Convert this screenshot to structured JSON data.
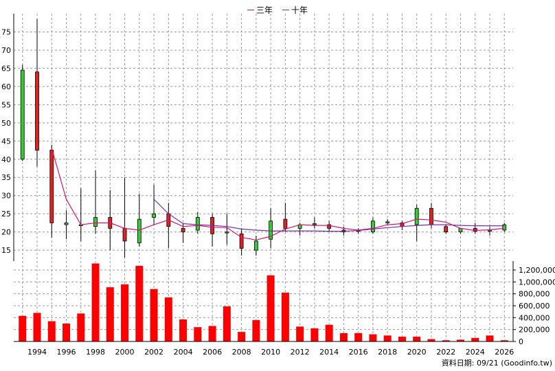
{
  "legend": {
    "three_year": "三年",
    "ten_year": "十年"
  },
  "source_text": "資料日期: 09/21  (Goodinfo.tw)",
  "colors": {
    "up": "#33cc33",
    "down": "#dd2222",
    "ma3": "#e0106e",
    "ma10": "#7030b0",
    "volume": "#ff0000",
    "grid": "#999999"
  },
  "chart_data": [
    {
      "type": "candlestick",
      "title": "",
      "x_tick_labels": [
        "1994",
        "1996",
        "1998",
        "2000",
        "2002",
        "2004",
        "2006",
        "2008",
        "2010",
        "2012",
        "2014",
        "2016",
        "2018",
        "2020",
        "2022",
        "2024",
        "2026"
      ],
      "y_tick_labels": [
        "15",
        "20",
        "25",
        "30",
        "35",
        "40",
        "45",
        "50",
        "55",
        "60",
        "65",
        "70",
        "75"
      ],
      "ylim": [
        12,
        80
      ],
      "grid": true,
      "candles": [
        {
          "year": 1993,
          "open": 40,
          "high": 66,
          "low": 39.5,
          "close": 64.5
        },
        {
          "year": 1994,
          "open": 64,
          "high": 78.5,
          "low": 38,
          "close": 42.5
        },
        {
          "year": 1995,
          "open": 42.5,
          "high": 44,
          "low": 18.5,
          "close": 22.5
        },
        {
          "year": 1996,
          "open": 22,
          "high": 26,
          "low": 18,
          "close": 22.5
        },
        {
          "year": 1997,
          "open": 22,
          "high": 32,
          "low": 17.5,
          "close": 22
        },
        {
          "year": 1998,
          "open": 21.5,
          "high": 37,
          "low": 19.5,
          "close": 24
        },
        {
          "year": 1999,
          "open": 24,
          "high": 31.5,
          "low": 15,
          "close": 21
        },
        {
          "year": 2000,
          "open": 21,
          "high": 35,
          "low": 13,
          "close": 17.5
        },
        {
          "year": 2001,
          "open": 17,
          "high": 30.5,
          "low": 16,
          "close": 23.5
        },
        {
          "year": 2002,
          "open": 24,
          "high": 33,
          "low": 22,
          "close": 25
        },
        {
          "year": 2003,
          "open": 25,
          "high": 28,
          "low": 15.5,
          "close": 21.5
        },
        {
          "year": 2004,
          "open": 21,
          "high": 22.5,
          "low": 17,
          "close": 20
        },
        {
          "year": 2005,
          "open": 20.5,
          "high": 25.5,
          "low": 19.5,
          "close": 24
        },
        {
          "year": 2006,
          "open": 24,
          "high": 25,
          "low": 16,
          "close": 19.5
        },
        {
          "year": 2007,
          "open": 20,
          "high": 25,
          "low": 16.5,
          "close": 20
        },
        {
          "year": 2008,
          "open": 19.5,
          "high": 21,
          "low": 13.5,
          "close": 15.5
        },
        {
          "year": 2009,
          "open": 15,
          "high": 19,
          "low": 13.5,
          "close": 17.5
        },
        {
          "year": 2010,
          "open": 18,
          "high": 26.5,
          "low": 15.5,
          "close": 23
        },
        {
          "year": 2011,
          "open": 23.5,
          "high": 28,
          "low": 20,
          "close": 21
        },
        {
          "year": 2012,
          "open": 21,
          "high": 22.5,
          "low": 19,
          "close": 22
        },
        {
          "year": 2013,
          "open": 22,
          "high": 24,
          "low": 21,
          "close": 22.3
        },
        {
          "year": 2014,
          "open": 22,
          "high": 23,
          "low": 20,
          "close": 21
        },
        {
          "year": 2015,
          "open": 20.5,
          "high": 21.5,
          "low": 19,
          "close": 20
        },
        {
          "year": 2016,
          "open": 20.5,
          "high": 21,
          "low": 19.5,
          "close": 20.2
        },
        {
          "year": 2017,
          "open": 20,
          "high": 24,
          "low": 19.5,
          "close": 23
        },
        {
          "year": 2018,
          "open": 22.5,
          "high": 23.5,
          "low": 22,
          "close": 22.8
        },
        {
          "year": 2019,
          "open": 22.5,
          "high": 23,
          "low": 20.5,
          "close": 21.5
        },
        {
          "year": 2020,
          "open": 22,
          "high": 27.5,
          "low": 17.5,
          "close": 26.5
        },
        {
          "year": 2021,
          "open": 26.5,
          "high": 28,
          "low": 21,
          "close": 22
        },
        {
          "year": 2022,
          "open": 21.5,
          "high": 22,
          "low": 19.5,
          "close": 20
        },
        {
          "year": 2023,
          "open": 20,
          "high": 21,
          "low": 19.5,
          "close": 21
        },
        {
          "year": 2024,
          "open": 21,
          "high": 22.5,
          "low": 19.5,
          "close": 20.2
        },
        {
          "year": 2025,
          "open": 20.5,
          "high": 21.5,
          "low": 19,
          "close": 20.5
        },
        {
          "year": 2026,
          "open": 20.5,
          "high": 22.5,
          "low": 20,
          "close": 22
        }
      ],
      "ma3": [
        {
          "year": 1995,
          "value": 43
        },
        {
          "year": 1996,
          "value": 29
        },
        {
          "year": 1997,
          "value": 22
        },
        {
          "year": 1998,
          "value": 22.5
        },
        {
          "year": 1999,
          "value": 22.5
        },
        {
          "year": 2000,
          "value": 21
        },
        {
          "year": 2001,
          "value": 20.5
        },
        {
          "year": 2002,
          "value": 22
        },
        {
          "year": 2003,
          "value": 23.3
        },
        {
          "year": 2004,
          "value": 21.5
        },
        {
          "year": 2005,
          "value": 21.8
        },
        {
          "year": 2006,
          "value": 21.3
        },
        {
          "year": 2007,
          "value": 21.2
        },
        {
          "year": 2008,
          "value": 18.5
        },
        {
          "year": 2009,
          "value": 17.8
        },
        {
          "year": 2010,
          "value": 18.8
        },
        {
          "year": 2011,
          "value": 20.8
        },
        {
          "year": 2012,
          "value": 22
        },
        {
          "year": 2013,
          "value": 21.8
        },
        {
          "year": 2014,
          "value": 21.8
        },
        {
          "year": 2015,
          "value": 21
        },
        {
          "year": 2016,
          "value": 20.5
        },
        {
          "year": 2017,
          "value": 21
        },
        {
          "year": 2018,
          "value": 22
        },
        {
          "year": 2019,
          "value": 22.3
        },
        {
          "year": 2020,
          "value": 23.5
        },
        {
          "year": 2021,
          "value": 23.3
        },
        {
          "year": 2022,
          "value": 22.7
        },
        {
          "year": 2023,
          "value": 21
        },
        {
          "year": 2024,
          "value": 20.4
        },
        {
          "year": 2025,
          "value": 20.6
        },
        {
          "year": 2026,
          "value": 21
        }
      ],
      "ma10": [
        {
          "year": 2002,
          "value": 29
        },
        {
          "year": 2003,
          "value": 25
        },
        {
          "year": 2004,
          "value": 22.3
        },
        {
          "year": 2005,
          "value": 22
        },
        {
          "year": 2006,
          "value": 21.8
        },
        {
          "year": 2007,
          "value": 21.5
        },
        {
          "year": 2008,
          "value": 20.8
        },
        {
          "year": 2009,
          "value": 20.5
        },
        {
          "year": 2010,
          "value": 20.3
        },
        {
          "year": 2011,
          "value": 20.3
        },
        {
          "year": 2012,
          "value": 20.3
        },
        {
          "year": 2013,
          "value": 20.3
        },
        {
          "year": 2014,
          "value": 20.2
        },
        {
          "year": 2015,
          "value": 20.2
        },
        {
          "year": 2016,
          "value": 20.4
        },
        {
          "year": 2017,
          "value": 20.8
        },
        {
          "year": 2018,
          "value": 21.2
        },
        {
          "year": 2019,
          "value": 21.5
        },
        {
          "year": 2020,
          "value": 21.8
        },
        {
          "year": 2021,
          "value": 22
        },
        {
          "year": 2022,
          "value": 22
        },
        {
          "year": 2023,
          "value": 21.8
        },
        {
          "year": 2024,
          "value": 21.7
        },
        {
          "year": 2025,
          "value": 21.7
        },
        {
          "year": 2026,
          "value": 21.7
        }
      ]
    },
    {
      "type": "bar",
      "title": "",
      "y_tick_labels": [
        "0",
        "200,000",
        "400,000",
        "600,000",
        "800,000",
        "1,000,000",
        "1,200,000"
      ],
      "ylim": [
        0,
        1350000
      ],
      "grid": true,
      "categories": [
        1993,
        1994,
        1995,
        1996,
        1997,
        1998,
        1999,
        2000,
        2001,
        2002,
        2003,
        2004,
        2005,
        2006,
        2007,
        2008,
        2009,
        2010,
        2011,
        2012,
        2013,
        2014,
        2015,
        2016,
        2017,
        2018,
        2019,
        2020,
        2021,
        2022,
        2023,
        2024,
        2025,
        2026
      ],
      "values": [
        430000,
        480000,
        340000,
        300000,
        470000,
        1310000,
        910000,
        960000,
        1270000,
        880000,
        740000,
        370000,
        240000,
        260000,
        590000,
        160000,
        360000,
        1110000,
        820000,
        250000,
        220000,
        280000,
        140000,
        140000,
        120000,
        100000,
        80000,
        80000,
        40000,
        20000,
        30000,
        60000,
        100000,
        20000
      ]
    }
  ]
}
